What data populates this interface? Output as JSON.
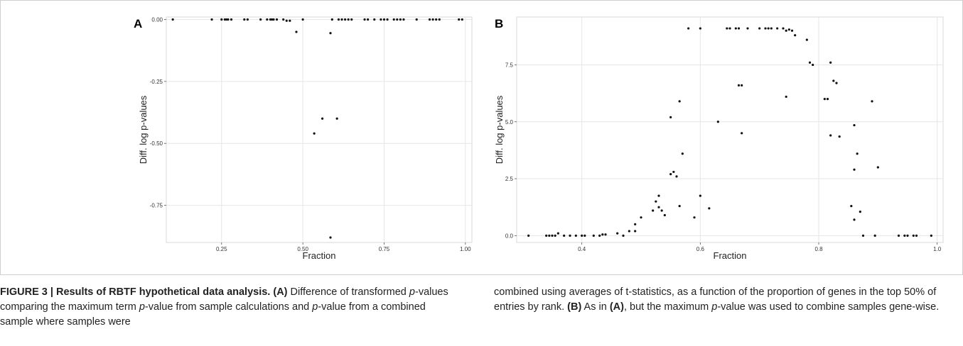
{
  "chart_data": [
    {
      "panel": "A",
      "type": "scatter",
      "xlabel": "Fraction",
      "ylabel": "Diff. log p-values",
      "xlim": [
        0.08,
        1.02
      ],
      "ylim": [
        -0.9,
        0.01
      ],
      "xticks": [
        "0.25",
        "0.50",
        "0.75",
        "1.00"
      ],
      "yticks": [
        "0.00",
        "-0.25",
        "-0.50",
        "-0.75"
      ],
      "grid": true,
      "points": [
        [
          0.1,
          0
        ],
        [
          0.22,
          0
        ],
        [
          0.25,
          0
        ],
        [
          0.26,
          0
        ],
        [
          0.265,
          0
        ],
        [
          0.27,
          0
        ],
        [
          0.28,
          0
        ],
        [
          0.32,
          0
        ],
        [
          0.33,
          0
        ],
        [
          0.37,
          0
        ],
        [
          0.39,
          0
        ],
        [
          0.4,
          0
        ],
        [
          0.405,
          0
        ],
        [
          0.41,
          0
        ],
        [
          0.42,
          0
        ],
        [
          0.44,
          0
        ],
        [
          0.45,
          -0.005
        ],
        [
          0.46,
          -0.005
        ],
        [
          0.5,
          0
        ],
        [
          0.48,
          -0.05
        ],
        [
          0.585,
          -0.055
        ],
        [
          0.59,
          0
        ],
        [
          0.61,
          0
        ],
        [
          0.62,
          0
        ],
        [
          0.63,
          0
        ],
        [
          0.64,
          0
        ],
        [
          0.65,
          0
        ],
        [
          0.69,
          0
        ],
        [
          0.7,
          0
        ],
        [
          0.72,
          0
        ],
        [
          0.74,
          0
        ],
        [
          0.75,
          0
        ],
        [
          0.76,
          0
        ],
        [
          0.78,
          0
        ],
        [
          0.79,
          0
        ],
        [
          0.8,
          0
        ],
        [
          0.81,
          0
        ],
        [
          0.85,
          0
        ],
        [
          0.89,
          0
        ],
        [
          0.9,
          0
        ],
        [
          0.91,
          0
        ],
        [
          0.92,
          0
        ],
        [
          0.98,
          0
        ],
        [
          0.99,
          0
        ],
        [
          0.535,
          -0.46
        ],
        [
          0.56,
          -0.4
        ],
        [
          0.605,
          -0.4
        ],
        [
          0.585,
          -0.88
        ]
      ]
    },
    {
      "panel": "B",
      "type": "scatter",
      "xlabel": "Fraction",
      "ylabel": "Diff. log p-values",
      "xlim": [
        0.29,
        1.01
      ],
      "ylim": [
        -0.3,
        9.6
      ],
      "xticks": [
        "0.4",
        "0.6",
        "0.8",
        "1.0"
      ],
      "yticks": [
        "0.0",
        "2.5",
        "5.0",
        "7.5"
      ],
      "grid": true,
      "points": [
        [
          0.31,
          0
        ],
        [
          0.34,
          0
        ],
        [
          0.345,
          0
        ],
        [
          0.35,
          0
        ],
        [
          0.355,
          0
        ],
        [
          0.36,
          0.1
        ],
        [
          0.37,
          0
        ],
        [
          0.38,
          0
        ],
        [
          0.39,
          0
        ],
        [
          0.4,
          0
        ],
        [
          0.405,
          0
        ],
        [
          0.42,
          0
        ],
        [
          0.43,
          0
        ],
        [
          0.435,
          0.05
        ],
        [
          0.44,
          0.05
        ],
        [
          0.46,
          0.1
        ],
        [
          0.47,
          0
        ],
        [
          0.48,
          0.2
        ],
        [
          0.49,
          0.5
        ],
        [
          0.49,
          0.2
        ],
        [
          0.5,
          0.8
        ],
        [
          0.52,
          1.1
        ],
        [
          0.525,
          1.5
        ],
        [
          0.53,
          1.75
        ],
        [
          0.53,
          1.25
        ],
        [
          0.535,
          1.1
        ],
        [
          0.54,
          0.9
        ],
        [
          0.55,
          2.7
        ],
        [
          0.555,
          2.8
        ],
        [
          0.56,
          2.6
        ],
        [
          0.565,
          1.3
        ],
        [
          0.57,
          3.6
        ],
        [
          0.565,
          5.9
        ],
        [
          0.55,
          5.2
        ],
        [
          0.58,
          9.1
        ],
        [
          0.59,
          0.8
        ],
        [
          0.6,
          1.75
        ],
        [
          0.6,
          9.1
        ],
        [
          0.615,
          1.2
        ],
        [
          0.63,
          5.0
        ],
        [
          0.645,
          9.1
        ],
        [
          0.65,
          9.1
        ],
        [
          0.66,
          9.1
        ],
        [
          0.665,
          9.1
        ],
        [
          0.665,
          6.6
        ],
        [
          0.67,
          6.6
        ],
        [
          0.67,
          4.5
        ],
        [
          0.68,
          9.1
        ],
        [
          0.7,
          9.1
        ],
        [
          0.71,
          9.1
        ],
        [
          0.715,
          9.1
        ],
        [
          0.72,
          9.1
        ],
        [
          0.73,
          9.1
        ],
        [
          0.74,
          9.1
        ],
        [
          0.745,
          9.0
        ],
        [
          0.75,
          9.05
        ],
        [
          0.755,
          9.0
        ],
        [
          0.76,
          8.8
        ],
        [
          0.745,
          6.1
        ],
        [
          0.78,
          8.6
        ],
        [
          0.785,
          7.6
        ],
        [
          0.79,
          7.5
        ],
        [
          0.81,
          6.0
        ],
        [
          0.815,
          6.0
        ],
        [
          0.82,
          7.6
        ],
        [
          0.82,
          4.4
        ],
        [
          0.825,
          6.8
        ],
        [
          0.83,
          6.7
        ],
        [
          0.835,
          4.35
        ],
        [
          0.86,
          4.85
        ],
        [
          0.865,
          3.6
        ],
        [
          0.86,
          2.9
        ],
        [
          0.855,
          1.3
        ],
        [
          0.86,
          0.7
        ],
        [
          0.87,
          1.05
        ],
        [
          0.875,
          0
        ],
        [
          0.89,
          5.9
        ],
        [
          0.895,
          0
        ],
        [
          0.9,
          3.0
        ],
        [
          0.935,
          0
        ],
        [
          0.945,
          0
        ],
        [
          0.95,
          0
        ],
        [
          0.96,
          0
        ],
        [
          0.965,
          0
        ],
        [
          0.99,
          0
        ]
      ]
    }
  ],
  "figure": {
    "panel_a_label": "A",
    "panel_b_label": "B"
  },
  "caption": {
    "title": "FIGURE 3 | Results of RBTF hypothetical data analysis.",
    "part_a_tag": "(A)",
    "text_a1": "Difference of transformed ",
    "p1": "p",
    "text_a2": "-values comparing the maximum term ",
    "p2": "p",
    "text_a3": "-value from sample calculations and ",
    "p3": "p",
    "text_a4": "-value from a combined sample where samples were combined using averages of t-statistics, as a function of the proportion of genes in the top 50% of entries by rank. ",
    "part_b_tag": "(B)",
    "text_b1": " As in ",
    "part_a_ref": "(A)",
    "text_b2": ", but the maximum ",
    "p4": "p",
    "text_b3": "-value was used to combine samples gene-wise."
  }
}
